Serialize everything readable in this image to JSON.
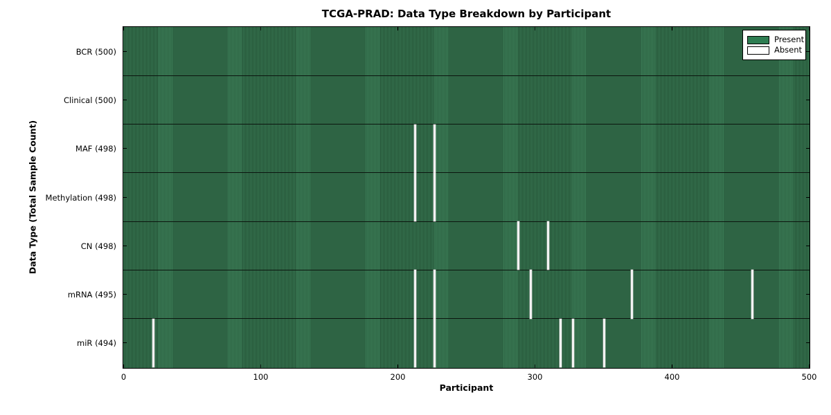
{
  "title": "TCGA-PRAD: Data Type Breakdown by Participant",
  "xlabel": "Participant",
  "ylabel": "Data Type (Total Sample Count)",
  "legend": {
    "entries": [
      {
        "label": "Present",
        "color": "#2e7d52"
      },
      {
        "label": "Absent",
        "color": "#ffffff"
      }
    ]
  },
  "chart_data": {
    "type": "heatmap",
    "title": "TCGA-PRAD: Data Type Breakdown by Participant",
    "xlabel": "Participant",
    "ylabel": "Data Type (Total Sample Count)",
    "x_range": [
      0,
      500
    ],
    "x_ticks": [
      0,
      100,
      200,
      300,
      400,
      500
    ],
    "grid": false,
    "legend_position": "upper right",
    "present_color": "#2e7d52",
    "absent_color": "#ffffff",
    "rows": [
      {
        "label": "BCR (500)",
        "data_type": "BCR",
        "total": 500,
        "absent_participants": []
      },
      {
        "label": "Clinical (500)",
        "data_type": "Clinical",
        "total": 500,
        "absent_participants": []
      },
      {
        "label": "MAF (498)",
        "data_type": "MAF",
        "total": 498,
        "absent_participants": [
          213,
          227
        ]
      },
      {
        "label": "Methylation (498)",
        "data_type": "Methylation",
        "total": 498,
        "absent_participants": [
          213,
          227
        ]
      },
      {
        "label": "CN (498)",
        "data_type": "CN",
        "total": 498,
        "absent_participants": [
          288,
          310
        ]
      },
      {
        "label": "mRNA (495)",
        "data_type": "mRNA",
        "total": 495,
        "absent_participants": [
          213,
          227,
          297,
          371,
          459
        ]
      },
      {
        "label": "miR (494)",
        "data_type": "miR",
        "total": 494,
        "absent_participants": [
          22,
          213,
          227,
          319,
          328,
          351
        ]
      }
    ]
  }
}
